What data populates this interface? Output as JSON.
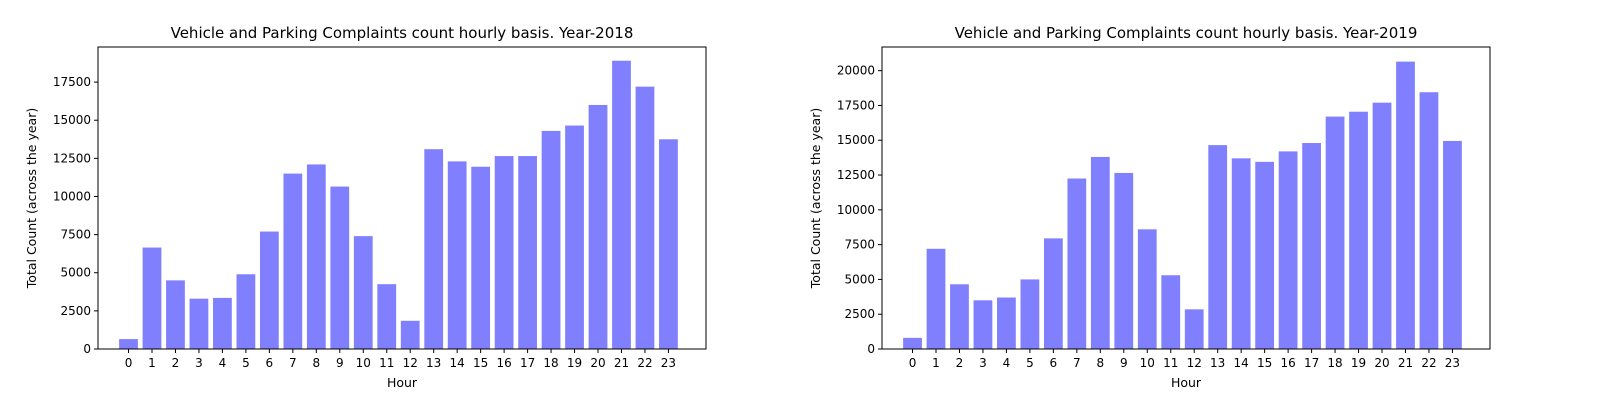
{
  "chart_data": [
    {
      "type": "bar",
      "title": "Vehicle and Parking Complaints count hourly basis. Year-2018",
      "xlabel": "Hour",
      "ylabel": "Total Count (across the year)",
      "categories": [
        "0",
        "1",
        "2",
        "3",
        "4",
        "5",
        "6",
        "7",
        "8",
        "9",
        "10",
        "11",
        "12",
        "13",
        "14",
        "15",
        "16",
        "17",
        "18",
        "19",
        "20",
        "21",
        "22",
        "23"
      ],
      "values": [
        650,
        6650,
        4500,
        3300,
        3350,
        4900,
        7700,
        11500,
        12100,
        10650,
        7400,
        4250,
        1850,
        13100,
        12300,
        11950,
        12650,
        12650,
        14300,
        14650,
        16000,
        18900,
        17200,
        13750
      ],
      "ylim": [
        0,
        19800
      ],
      "yticks": [
        0,
        2500,
        5000,
        7500,
        10000,
        12500,
        15000,
        17500
      ],
      "grid": false,
      "bar_color": "#8080ff"
    },
    {
      "type": "bar",
      "title": "Vehicle and Parking Complaints count hourly basis. Year-2019",
      "xlabel": "Hour",
      "ylabel": "Total Count (across the year)",
      "categories": [
        "0",
        "1",
        "2",
        "3",
        "4",
        "5",
        "6",
        "7",
        "8",
        "9",
        "10",
        "11",
        "12",
        "13",
        "14",
        "15",
        "16",
        "17",
        "18",
        "19",
        "20",
        "21",
        "22",
        "23"
      ],
      "values": [
        800,
        7200,
        4650,
        3500,
        3700,
        5000,
        7950,
        12250,
        13800,
        12650,
        8600,
        5300,
        2850,
        14650,
        13700,
        13450,
        14200,
        14800,
        16700,
        17050,
        17700,
        20650,
        18450,
        14950
      ],
      "ylim": [
        0,
        21700
      ],
      "yticks": [
        0,
        2500,
        5000,
        7500,
        10000,
        12500,
        15000,
        17500,
        20000
      ],
      "grid": false,
      "bar_color": "#8080ff"
    }
  ]
}
